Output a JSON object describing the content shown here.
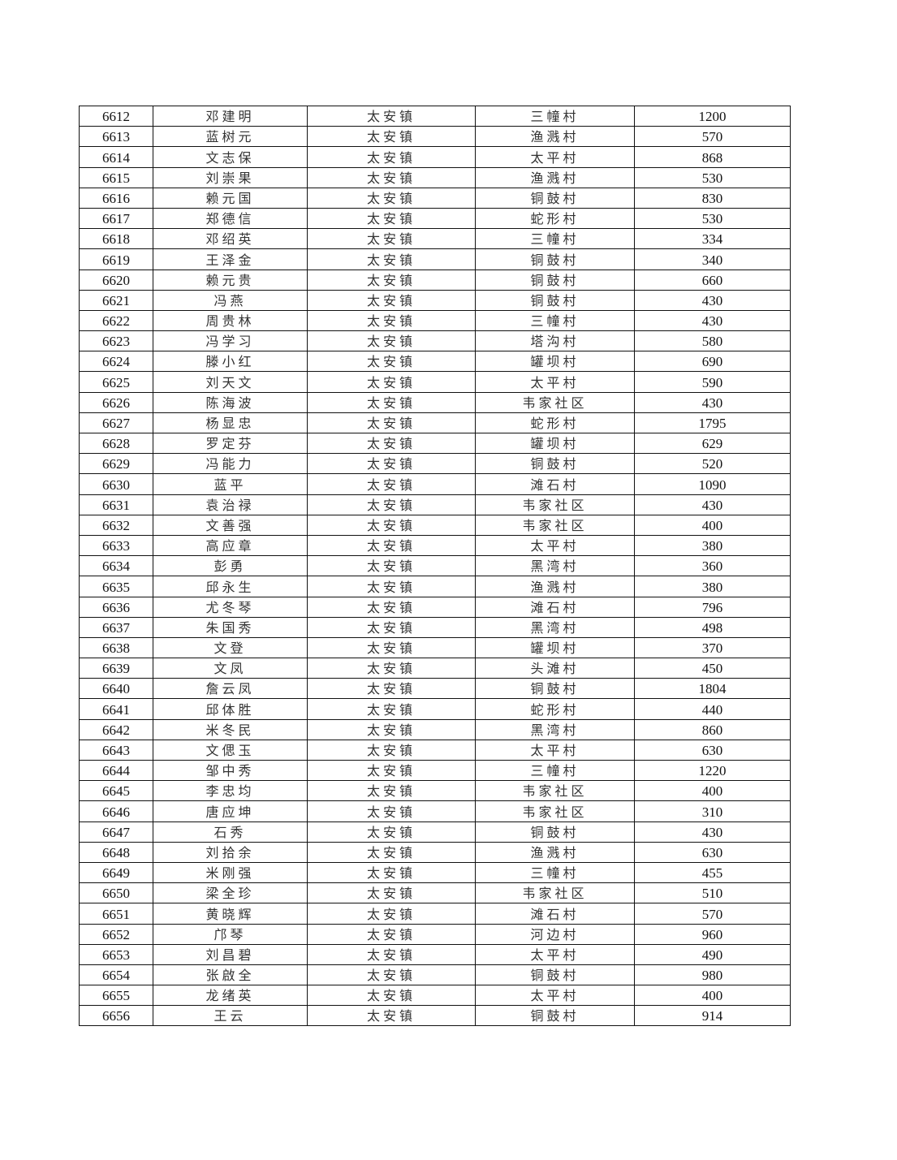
{
  "table": {
    "rows": [
      [
        "6612",
        "邓建明",
        "太安镇",
        "三幢村",
        "1200"
      ],
      [
        "6613",
        "蓝树元",
        "太安镇",
        "渔溅村",
        "570"
      ],
      [
        "6614",
        "文志保",
        "太安镇",
        "太平村",
        "868"
      ],
      [
        "6615",
        "刘崇果",
        "太安镇",
        "渔溅村",
        "530"
      ],
      [
        "6616",
        "赖元国",
        "太安镇",
        "铜鼓村",
        "830"
      ],
      [
        "6617",
        "郑德信",
        "太安镇",
        "蛇形村",
        "530"
      ],
      [
        "6618",
        "邓绍英",
        "太安镇",
        "三幢村",
        "334"
      ],
      [
        "6619",
        "王泽金",
        "太安镇",
        "铜鼓村",
        "340"
      ],
      [
        "6620",
        "赖元贵",
        "太安镇",
        "铜鼓村",
        "660"
      ],
      [
        "6621",
        "冯燕",
        "太安镇",
        "铜鼓村",
        "430"
      ],
      [
        "6622",
        "周贵林",
        "太安镇",
        "三幢村",
        "430"
      ],
      [
        "6623",
        "冯学习",
        "太安镇",
        "塔沟村",
        "580"
      ],
      [
        "6624",
        "滕小红",
        "太安镇",
        "罐坝村",
        "690"
      ],
      [
        "6625",
        "刘天文",
        "太安镇",
        "太平村",
        "590"
      ],
      [
        "6626",
        "陈海波",
        "太安镇",
        "韦家社区",
        "430"
      ],
      [
        "6627",
        "杨显忠",
        "太安镇",
        "蛇形村",
        "1795"
      ],
      [
        "6628",
        "罗定芬",
        "太安镇",
        "罐坝村",
        "629"
      ],
      [
        "6629",
        "冯能力",
        "太安镇",
        "铜鼓村",
        "520"
      ],
      [
        "6630",
        "蓝平",
        "太安镇",
        "滩石村",
        "1090"
      ],
      [
        "6631",
        "袁治禄",
        "太安镇",
        "韦家社区",
        "430"
      ],
      [
        "6632",
        "文善强",
        "太安镇",
        "韦家社区",
        "400"
      ],
      [
        "6633",
        "高应章",
        "太安镇",
        "太平村",
        "380"
      ],
      [
        "6634",
        "彭勇",
        "太安镇",
        "黑湾村",
        "360"
      ],
      [
        "6635",
        "邱永生",
        "太安镇",
        "渔溅村",
        "380"
      ],
      [
        "6636",
        "尤冬琴",
        "太安镇",
        "滩石村",
        "796"
      ],
      [
        "6637",
        "朱国秀",
        "太安镇",
        "黑湾村",
        "498"
      ],
      [
        "6638",
        "文登",
        "太安镇",
        "罐坝村",
        "370"
      ],
      [
        "6639",
        "文凤",
        "太安镇",
        "头滩村",
        "450"
      ],
      [
        "6640",
        "詹云凤",
        "太安镇",
        "铜鼓村",
        "1804"
      ],
      [
        "6641",
        "邱体胜",
        "太安镇",
        "蛇形村",
        "440"
      ],
      [
        "6642",
        "米冬民",
        "太安镇",
        "黑湾村",
        "860"
      ],
      [
        "6643",
        "文偲玉",
        "太安镇",
        "太平村",
        "630"
      ],
      [
        "6644",
        "邹中秀",
        "太安镇",
        "三幢村",
        "1220"
      ],
      [
        "6645",
        "李忠均",
        "太安镇",
        "韦家社区",
        "400"
      ],
      [
        "6646",
        "唐应坤",
        "太安镇",
        "韦家社区",
        "310"
      ],
      [
        "6647",
        "石秀",
        "太安镇",
        "铜鼓村",
        "430"
      ],
      [
        "6648",
        "刘拾余",
        "太安镇",
        "渔溅村",
        "630"
      ],
      [
        "6649",
        "米刚强",
        "太安镇",
        "三幢村",
        "455"
      ],
      [
        "6650",
        "梁全珍",
        "太安镇",
        "韦家社区",
        "510"
      ],
      [
        "6651",
        "黄晓辉",
        "太安镇",
        "滩石村",
        "570"
      ],
      [
        "6652",
        "邝琴",
        "太安镇",
        "河边村",
        "960"
      ],
      [
        "6653",
        "刘昌碧",
        "太安镇",
        "太平村",
        "490"
      ],
      [
        "6654",
        "张啟全",
        "太安镇",
        "铜鼓村",
        "980"
      ],
      [
        "6655",
        "龙绪英",
        "太安镇",
        "太平村",
        "400"
      ],
      [
        "6656",
        "王云",
        "太安镇",
        "铜鼓村",
        "914"
      ]
    ]
  }
}
